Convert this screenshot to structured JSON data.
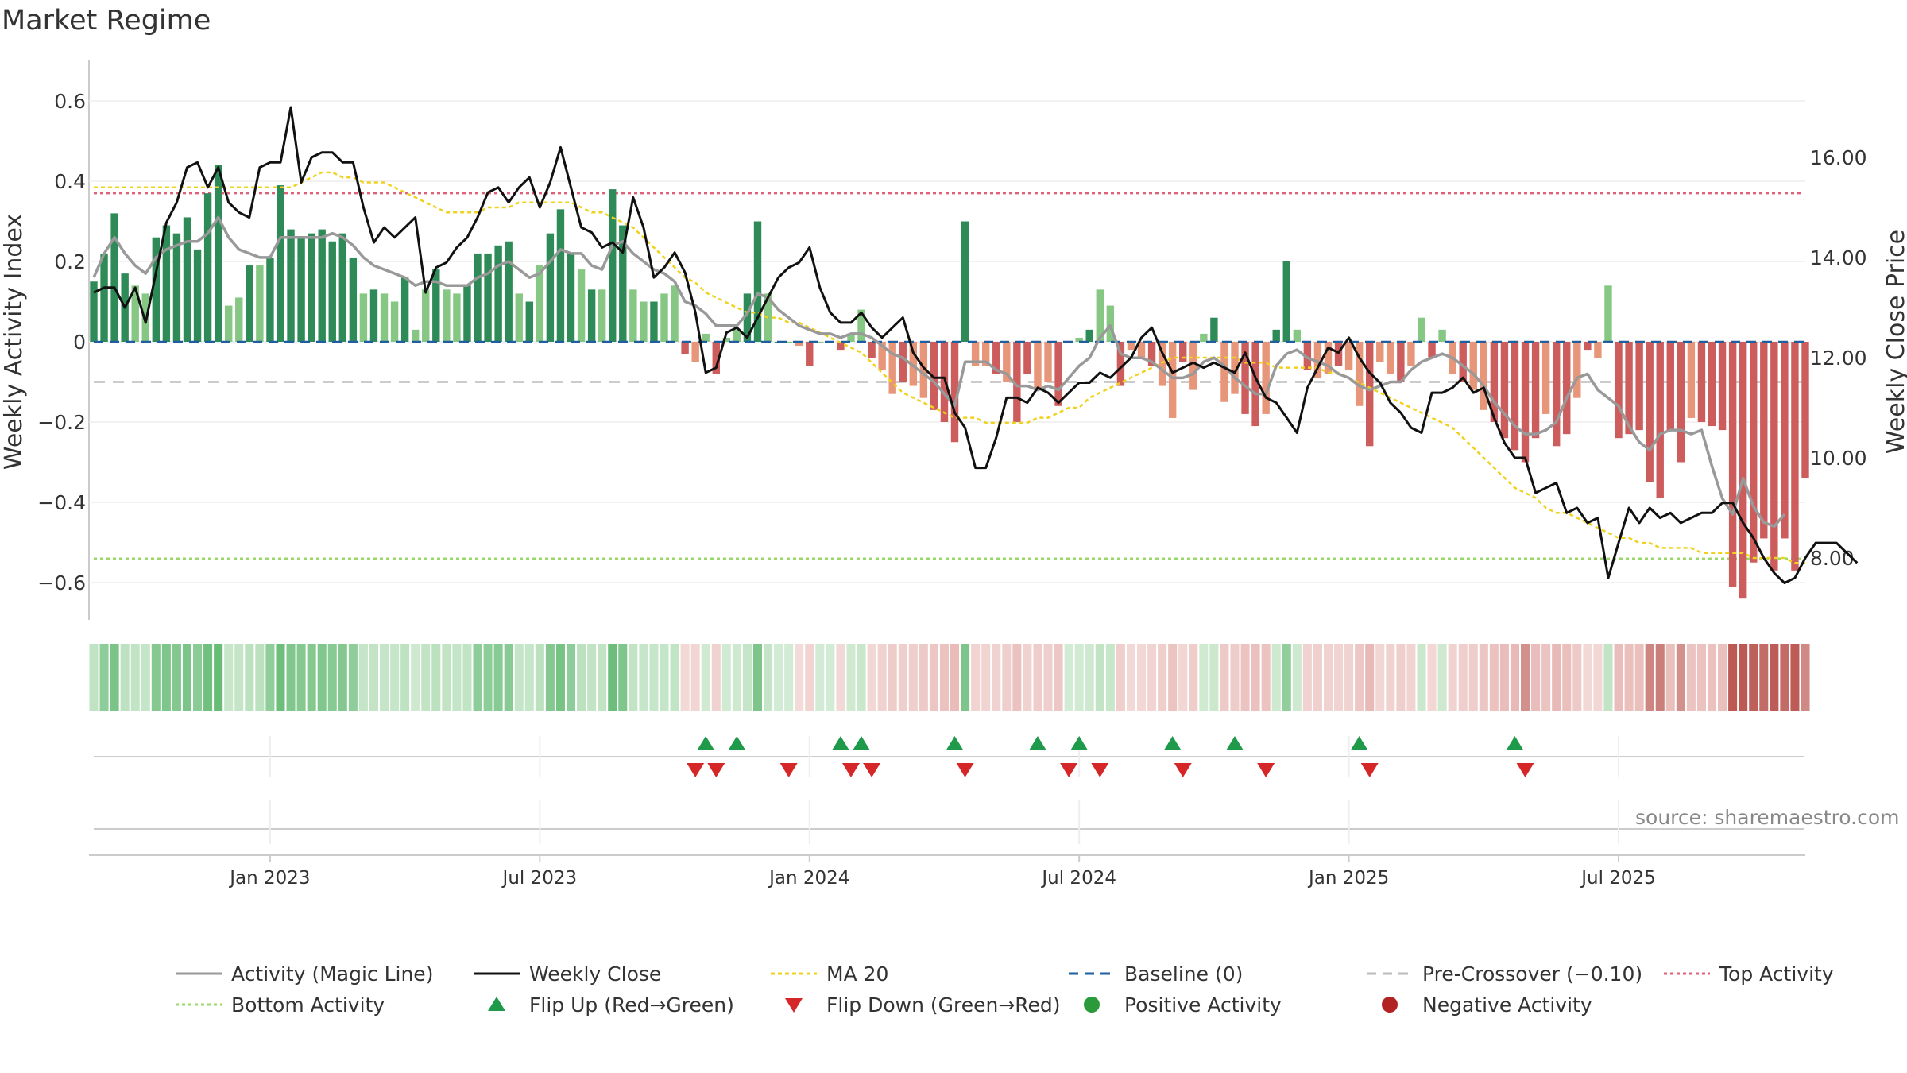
{
  "title": "Market Regime",
  "source": "source: sharemaestro.com",
  "chart_data": {
    "type": "bar",
    "ylabel_left": "Weekly Activity Index",
    "ylabel_right": "Weekly Close Price",
    "ylim_left": [
      -0.7,
      0.7
    ],
    "ylim_right": [
      6.5,
      17.5
    ],
    "yticks_left": [
      {
        "v": 0.6,
        "label": "0.6"
      },
      {
        "v": 0.4,
        "label": "0.4"
      },
      {
        "v": 0.2,
        "label": "0.2"
      },
      {
        "v": 0,
        "label": "0"
      },
      {
        "v": -0.2,
        "label": "−0.2"
      },
      {
        "v": -0.4,
        "label": "−0.4"
      },
      {
        "v": -0.6,
        "label": "−0.6"
      }
    ],
    "yticks_right": [
      {
        "v": 16,
        "label": "16.00"
      },
      {
        "v": 14,
        "label": "14.00"
      },
      {
        "v": 12,
        "label": "12.00"
      },
      {
        "v": 10,
        "label": "10.00"
      },
      {
        "v": 8,
        "label": "8.00"
      }
    ],
    "xticks": [
      {
        "week": 17,
        "label": "Jan 2023"
      },
      {
        "week": 43,
        "label": "Jul 2023"
      },
      {
        "week": 69,
        "label": "Jan 2024"
      },
      {
        "week": 95,
        "label": "Jul 2024"
      },
      {
        "week": 121,
        "label": "Jan 2025"
      },
      {
        "week": 147,
        "label": "Jul 2025"
      }
    ],
    "top_activity": 0.37,
    "bottom_activity": -0.54,
    "pre_crossover": -0.1,
    "activity": [
      0.15,
      0.22,
      0.32,
      0.17,
      0.14,
      0.12,
      0.26,
      0.29,
      0.27,
      0.31,
      0.23,
      0.37,
      0.44,
      0.09,
      0.11,
      0.19,
      0.19,
      0.21,
      0.39,
      0.28,
      0.26,
      0.27,
      0.28,
      0.25,
      0.27,
      0.21,
      0.12,
      0.13,
      0.12,
      0.1,
      0.16,
      0.03,
      0.13,
      0.18,
      0.13,
      0.12,
      0.14,
      0.22,
      0.22,
      0.24,
      0.25,
      0.12,
      0.1,
      0.19,
      0.27,
      0.33,
      0.22,
      0.18,
      0.13,
      0.13,
      0.38,
      0.29,
      0.13,
      0.1,
      0.1,
      0.12,
      0.14,
      -0.03,
      -0.05,
      0.02,
      -0.08,
      0.01,
      0.03,
      0.12,
      0.3,
      0.12,
      0.0,
      0.0,
      -0.01,
      -0.06,
      0.0,
      0.0,
      -0.02,
      0.02,
      0.08,
      -0.04,
      -0.07,
      -0.13,
      -0.1,
      -0.11,
      -0.14,
      -0.17,
      -0.2,
      -0.25,
      0.3,
      -0.06,
      -0.06,
      -0.08,
      -0.1,
      -0.2,
      -0.08,
      -0.12,
      -0.1,
      -0.16,
      0.0,
      0.01,
      0.03,
      0.13,
      0.09,
      -0.11,
      -0.02,
      -0.04,
      -0.06,
      -0.11,
      -0.19,
      -0.05,
      -0.12,
      0.02,
      0.06,
      -0.15,
      -0.13,
      -0.18,
      -0.21,
      -0.18,
      0.03,
      0.2,
      0.03,
      -0.07,
      -0.09,
      -0.08,
      -0.06,
      -0.07,
      -0.16,
      -0.26,
      -0.05,
      -0.08,
      -0.1,
      -0.06,
      0.06,
      -0.04,
      0.03,
      -0.08,
      -0.1,
      -0.12,
      -0.17,
      -0.2,
      -0.24,
      -0.27,
      -0.3,
      -0.24,
      -0.18,
      -0.26,
      -0.23,
      -0.14,
      -0.02,
      -0.04,
      0.14,
      -0.24,
      -0.23,
      -0.22,
      -0.35,
      -0.39,
      -0.22,
      -0.3,
      -0.19,
      -0.2,
      -0.21,
      -0.22,
      -0.61,
      -0.64,
      -0.55,
      -0.49,
      -0.57,
      -0.49,
      -0.57,
      -0.34
    ],
    "magic_line": [
      0.16,
      0.22,
      0.26,
      0.22,
      0.19,
      0.17,
      0.21,
      0.23,
      0.24,
      0.25,
      0.25,
      0.27,
      0.31,
      0.26,
      0.23,
      0.22,
      0.21,
      0.21,
      0.26,
      0.26,
      0.26,
      0.26,
      0.26,
      0.27,
      0.26,
      0.24,
      0.21,
      0.19,
      0.18,
      0.17,
      0.16,
      0.14,
      0.15,
      0.15,
      0.14,
      0.14,
      0.14,
      0.16,
      0.17,
      0.19,
      0.2,
      0.18,
      0.16,
      0.17,
      0.2,
      0.23,
      0.22,
      0.22,
      0.19,
      0.18,
      0.24,
      0.25,
      0.22,
      0.2,
      0.18,
      0.17,
      0.15,
      0.1,
      0.09,
      0.07,
      0.04,
      0.04,
      0.04,
      0.07,
      0.12,
      0.11,
      0.08,
      0.06,
      0.04,
      0.03,
      0.02,
      0.02,
      0.01,
      0.02,
      0.02,
      0.01,
      -0.01,
      -0.03,
      -0.04,
      -0.06,
      -0.08,
      -0.1,
      -0.13,
      -0.16,
      -0.05,
      -0.05,
      -0.05,
      -0.07,
      -0.08,
      -0.11,
      -0.11,
      -0.12,
      -0.11,
      -0.12,
      -0.09,
      -0.06,
      -0.04,
      0.01,
      0.04,
      -0.03,
      -0.04,
      -0.04,
      -0.05,
      -0.07,
      -0.09,
      -0.09,
      -0.08,
      -0.05,
      -0.04,
      -0.06,
      -0.09,
      -0.11,
      -0.13,
      -0.13,
      -0.06,
      -0.03,
      -0.02,
      -0.04,
      -0.05,
      -0.06,
      -0.08,
      -0.09,
      -0.11,
      -0.12,
      -0.11,
      -0.1,
      -0.1,
      -0.07,
      -0.05,
      -0.04,
      -0.03,
      -0.04,
      -0.06,
      -0.08,
      -0.11,
      -0.15,
      -0.18,
      -0.21,
      -0.23,
      -0.23,
      -0.22,
      -0.2,
      -0.14,
      -0.09,
      -0.08,
      -0.12,
      -0.14,
      -0.16,
      -0.21,
      -0.25,
      -0.27,
      -0.23,
      -0.22,
      -0.22,
      -0.23,
      -0.22,
      -0.31,
      -0.39,
      -0.43,
      -0.34,
      -0.41,
      -0.45,
      -0.46,
      -0.43
    ],
    "weekly_close": [
      13.3,
      13.4,
      13.4,
      13.0,
      13.4,
      12.7,
      13.7,
      14.7,
      15.1,
      15.8,
      15.9,
      15.4,
      15.8,
      15.1,
      14.9,
      14.8,
      15.8,
      15.9,
      15.9,
      17.0,
      15.5,
      16.0,
      16.1,
      16.1,
      15.9,
      15.9,
      15.0,
      14.3,
      14.6,
      14.4,
      14.6,
      14.8,
      13.3,
      13.8,
      13.9,
      14.2,
      14.4,
      14.8,
      15.3,
      15.4,
      15.1,
      15.4,
      15.6,
      15.0,
      15.5,
      16.2,
      15.4,
      14.6,
      14.5,
      14.2,
      14.3,
      14.1,
      15.2,
      14.6,
      13.6,
      13.8,
      14.1,
      13.7,
      12.9,
      11.7,
      11.8,
      12.5,
      12.6,
      12.4,
      12.8,
      13.2,
      13.6,
      13.8,
      13.9,
      14.2,
      13.4,
      12.9,
      12.7,
      12.7,
      12.9,
      12.6,
      12.4,
      12.6,
      12.8,
      12.1,
      11.8,
      11.6,
      11.6,
      10.9,
      10.6,
      9.8,
      9.8,
      10.4,
      11.2,
      11.2,
      11.1,
      11.4,
      11.3,
      11.1,
      11.3,
      11.5,
      11.5,
      11.7,
      11.6,
      11.8,
      12.0,
      12.4,
      12.6,
      12.1,
      11.7,
      11.8,
      11.9,
      11.8,
      11.9,
      11.8,
      11.7,
      12.1,
      11.6,
      11.2,
      11.1,
      10.8,
      10.5,
      11.4,
      11.8,
      12.2,
      12.1,
      12.4,
      12.0,
      11.7,
      11.5,
      11.1,
      10.9,
      10.6,
      10.5,
      11.3,
      11.3,
      11.4,
      11.6,
      11.3,
      11.4,
      10.8,
      10.3,
      10.0,
      10.0,
      9.3,
      9.4,
      9.5,
      8.9,
      9.0,
      8.7,
      8.8,
      7.6,
      8.3,
      9.0,
      8.7,
      9.0,
      8.8,
      8.9,
      8.7,
      8.8,
      8.9,
      8.9,
      9.1,
      9.1,
      8.7,
      8.4,
      8.0,
      7.7,
      7.5,
      7.6,
      8.0,
      8.3,
      8.3,
      8.3,
      8.1,
      7.9
    ],
    "ma20": [
      15.4,
      15.4,
      15.4,
      15.4,
      15.4,
      15.4,
      15.4,
      15.4,
      15.4,
      15.4,
      15.4,
      15.4,
      15.4,
      15.4,
      15.4,
      15.4,
      15.4,
      15.4,
      15.4,
      15.4,
      15.5,
      15.6,
      15.7,
      15.7,
      15.6,
      15.6,
      15.5,
      15.5,
      15.5,
      15.4,
      15.3,
      15.2,
      15.1,
      15.0,
      14.9,
      14.9,
      14.9,
      14.9,
      15.0,
      15.0,
      15.0,
      15.1,
      15.1,
      15.1,
      15.1,
      15.1,
      15.1,
      15.0,
      14.9,
      14.9,
      14.8,
      14.7,
      14.6,
      14.4,
      14.2,
      14.0,
      13.8,
      13.6,
      13.5,
      13.3,
      13.2,
      13.1,
      13.0,
      12.9,
      12.9,
      12.8,
      12.8,
      12.7,
      12.7,
      12.6,
      12.5,
      12.4,
      12.3,
      12.2,
      12.1,
      11.9,
      11.7,
      11.5,
      11.3,
      11.2,
      11.1,
      11.0,
      10.9,
      10.8,
      10.8,
      10.8,
      10.7,
      10.7,
      10.7,
      10.7,
      10.7,
      10.8,
      10.8,
      10.9,
      11.0,
      11.0,
      11.2,
      11.3,
      11.4,
      11.5,
      11.6,
      11.7,
      11.8,
      11.9,
      12.0,
      12.0,
      12.0,
      12.0,
      12.0,
      12.0,
      12.0,
      11.9,
      11.9,
      11.9,
      11.8,
      11.8,
      11.8,
      11.8,
      11.8,
      11.7,
      11.7,
      11.6,
      11.5,
      11.4,
      11.3,
      11.2,
      11.1,
      11.0,
      10.9,
      10.8,
      10.7,
      10.6,
      10.4,
      10.2,
      10.0,
      9.8,
      9.6,
      9.4,
      9.3,
      9.2,
      9.0,
      8.9,
      8.9,
      8.8,
      8.7,
      8.6,
      8.5,
      8.4,
      8.4,
      8.3,
      8.3,
      8.2,
      8.2,
      8.2,
      8.2,
      8.1,
      8.1,
      8.1,
      8.1,
      8.1,
      8.0,
      8.0,
      8.0,
      8.0,
      7.9,
      7.9
    ],
    "flip_up": [
      59,
      62,
      72,
      74,
      83,
      91,
      95,
      104,
      110,
      122,
      137
    ],
    "flip_down": [
      58,
      60,
      67,
      73,
      75,
      84,
      94,
      97,
      105,
      113,
      123,
      138
    ],
    "legend": [
      {
        "label": "Activity (Magic Line)",
        "kind": "line",
        "color": "#999999",
        "dash": ""
      },
      {
        "label": "Weekly Close",
        "kind": "line",
        "color": "#111111",
        "dash": ""
      },
      {
        "label": "MA 20",
        "kind": "line",
        "color": "#f0d21c",
        "dash": "5,4"
      },
      {
        "label": "Baseline (0)",
        "kind": "line",
        "color": "#1f5fa0",
        "dash": "12,8"
      },
      {
        "label": "Pre-Crossover (−0.10)",
        "kind": "line",
        "color": "#bbbbbb",
        "dash": "12,8"
      },
      {
        "label": "Top Activity",
        "kind": "line",
        "color": "#e0607a",
        "dash": "4,4"
      },
      {
        "label": "Bottom Activity",
        "kind": "line",
        "color": "#9ad86a",
        "dash": "4,4"
      },
      {
        "label": "Flip Up (Red→Green)",
        "kind": "up",
        "color": "#1f9a4a",
        "dash": ""
      },
      {
        "label": "Flip Down (Green→Red)",
        "kind": "down",
        "color": "#d62728",
        "dash": ""
      },
      {
        "label": "Positive Activity",
        "kind": "dot",
        "color": "#2a9a3a",
        "dash": ""
      },
      {
        "label": "Negative Activity",
        "kind": "dot",
        "color": "#b22222",
        "dash": ""
      }
    ],
    "colors": {
      "pos_strong": "#2e8b57",
      "pos_weak": "#86c784",
      "neg_strong": "#cd5c5c",
      "neg_weak": "#e8967a",
      "magic_line": "#999999",
      "close": "#111111",
      "ma20": "#f0d21c",
      "baseline": "#1f5fa0",
      "pre_crossover": "#bbbbbb",
      "top": "#e0607a",
      "bottom": "#9ad86a",
      "flip_up": "#1f9a4a",
      "flip_down": "#d62728"
    }
  }
}
